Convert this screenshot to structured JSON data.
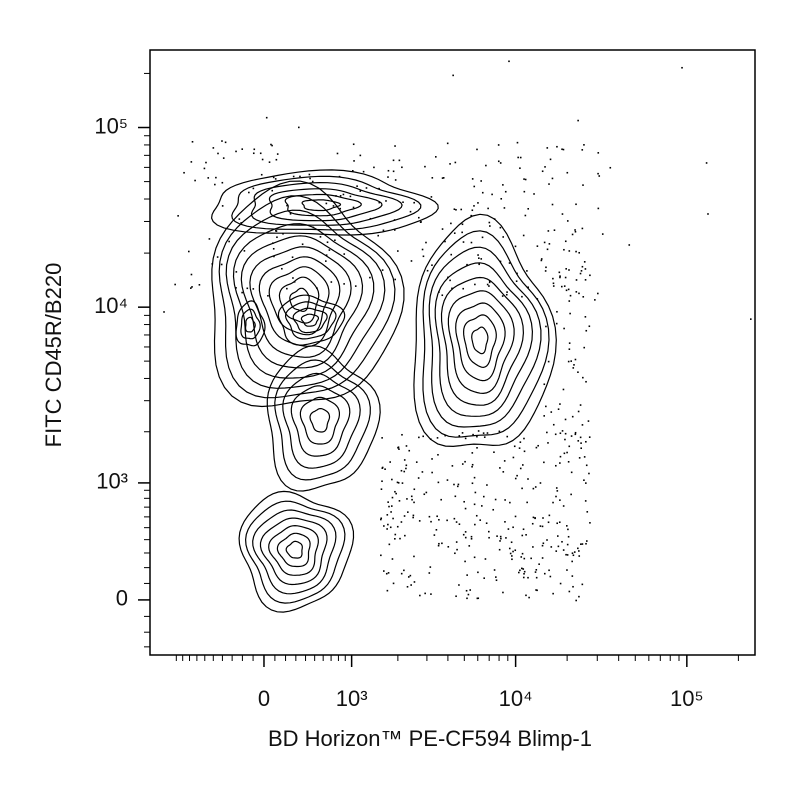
{
  "chart_data": {
    "type": "contour",
    "xlabel": "BD Horizon™ PE-CF594 Blimp-1",
    "ylabel": "FITC CD45R/B220",
    "xscale": "biexponential",
    "yscale": "biexponential",
    "xlim": [
      -1500,
      250000
    ],
    "ylim": [
      -360,
      270000
    ],
    "xticks": [
      {
        "value": 0,
        "label": "0"
      },
      {
        "value": 1000,
        "label": "10³"
      },
      {
        "value": 10000,
        "label": "10⁴"
      },
      {
        "value": 100000,
        "label": "10⁵"
      }
    ],
    "yticks": [
      {
        "value": 0,
        "label": "0"
      },
      {
        "value": 1000,
        "label": "10³"
      },
      {
        "value": 10000,
        "label": "10⁴"
      },
      {
        "value": 100000,
        "label": "10⁵"
      }
    ],
    "xminorticks": [
      -1000,
      -900,
      -800,
      -700,
      -600,
      -500,
      -400,
      -300,
      -200,
      -100,
      100,
      200,
      300,
      400,
      500,
      600,
      700,
      800,
      900,
      2000,
      3000,
      4000,
      5000,
      6000,
      7000,
      8000,
      9000,
      20000,
      30000,
      40000,
      50000,
      60000,
      70000,
      80000,
      90000,
      200000
    ],
    "yminorticks": [
      -300,
      -200,
      -100,
      100,
      200,
      300,
      400,
      500,
      600,
      700,
      800,
      900,
      2000,
      3000,
      4000,
      5000,
      6000,
      7000,
      8000,
      9000,
      20000,
      30000,
      40000,
      50000,
      60000,
      70000,
      80000,
      90000,
      200000
    ],
    "color": "#000000"
  }
}
